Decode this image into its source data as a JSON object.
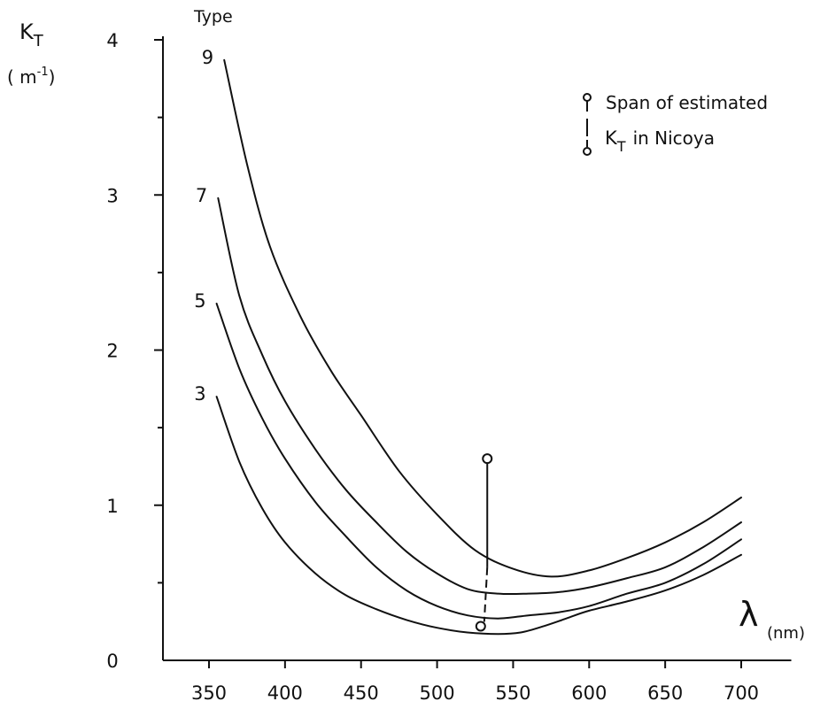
{
  "chart_data": {
    "type": "line",
    "ylabel_symbol": "K",
    "ylabel_subscript": "T",
    "ylabel_unit": "( m",
    "ylabel_unit_sup": "-1",
    "ylabel_unit_close": ")",
    "xlabel_symbol": "λ",
    "xlabel_unit": "(nm)",
    "series_header": "Type",
    "xlim": [
      330,
      730
    ],
    "ylim": [
      0,
      4
    ],
    "x_ticks": [
      "350",
      "400",
      "450",
      "500",
      "550",
      "600",
      "650",
      "700"
    ],
    "x_tick_values": [
      350,
      400,
      450,
      500,
      550,
      600,
      650,
      700
    ],
    "y_ticks": [
      "0",
      "1",
      "2",
      "3",
      "4"
    ],
    "y_tick_values": [
      0,
      1,
      2,
      3,
      4
    ],
    "y_minor_ticks": [
      0.5,
      1.5,
      2.5,
      3.5
    ],
    "grid": false,
    "series": [
      {
        "name": "9",
        "x": [
          360,
          375,
          390,
          410,
          430,
          450,
          475,
          500,
          525,
          550,
          575,
          600,
          625,
          650,
          675,
          700
        ],
        "y": [
          3.87,
          3.2,
          2.67,
          2.22,
          1.87,
          1.58,
          1.22,
          0.94,
          0.71,
          0.59,
          0.54,
          0.58,
          0.66,
          0.76,
          0.89,
          1.05
        ]
      },
      {
        "name": "7",
        "x": [
          356,
          370,
          385,
          400,
          420,
          440,
          460,
          480,
          500,
          520,
          540,
          560,
          580,
          600,
          625,
          650,
          675,
          700
        ],
        "y": [
          2.98,
          2.35,
          1.97,
          1.67,
          1.36,
          1.1,
          0.89,
          0.7,
          0.56,
          0.46,
          0.43,
          0.43,
          0.44,
          0.47,
          0.53,
          0.6,
          0.73,
          0.89
        ]
      },
      {
        "name": "5",
        "x": [
          355,
          370,
          385,
          400,
          420,
          440,
          460,
          480,
          500,
          520,
          540,
          560,
          580,
          600,
          625,
          650,
          675,
          700
        ],
        "y": [
          2.3,
          1.88,
          1.56,
          1.3,
          1.02,
          0.8,
          0.6,
          0.45,
          0.35,
          0.29,
          0.27,
          0.29,
          0.31,
          0.35,
          0.43,
          0.5,
          0.62,
          0.78
        ]
      },
      {
        "name": "3",
        "x": [
          355,
          370,
          385,
          400,
          420,
          440,
          460,
          480,
          500,
          520,
          540,
          555,
          570,
          585,
          600,
          625,
          650,
          675,
          700
        ],
        "y": [
          1.7,
          1.28,
          0.98,
          0.76,
          0.56,
          0.42,
          0.33,
          0.26,
          0.21,
          0.18,
          0.17,
          0.18,
          0.22,
          0.27,
          0.32,
          0.38,
          0.45,
          0.55,
          0.68
        ]
      }
    ],
    "nicoya_span": {
      "x_top": 533,
      "x_bottom": 531,
      "y_top": 1.3,
      "y_bottom": 0.22,
      "y_solid_until": 0.6
    },
    "legend": {
      "position": "top-right",
      "line1": "Span of estimated",
      "line2_symbol": "K",
      "line2_subscript": "T",
      "line2_rest": "in Nicoya"
    }
  }
}
